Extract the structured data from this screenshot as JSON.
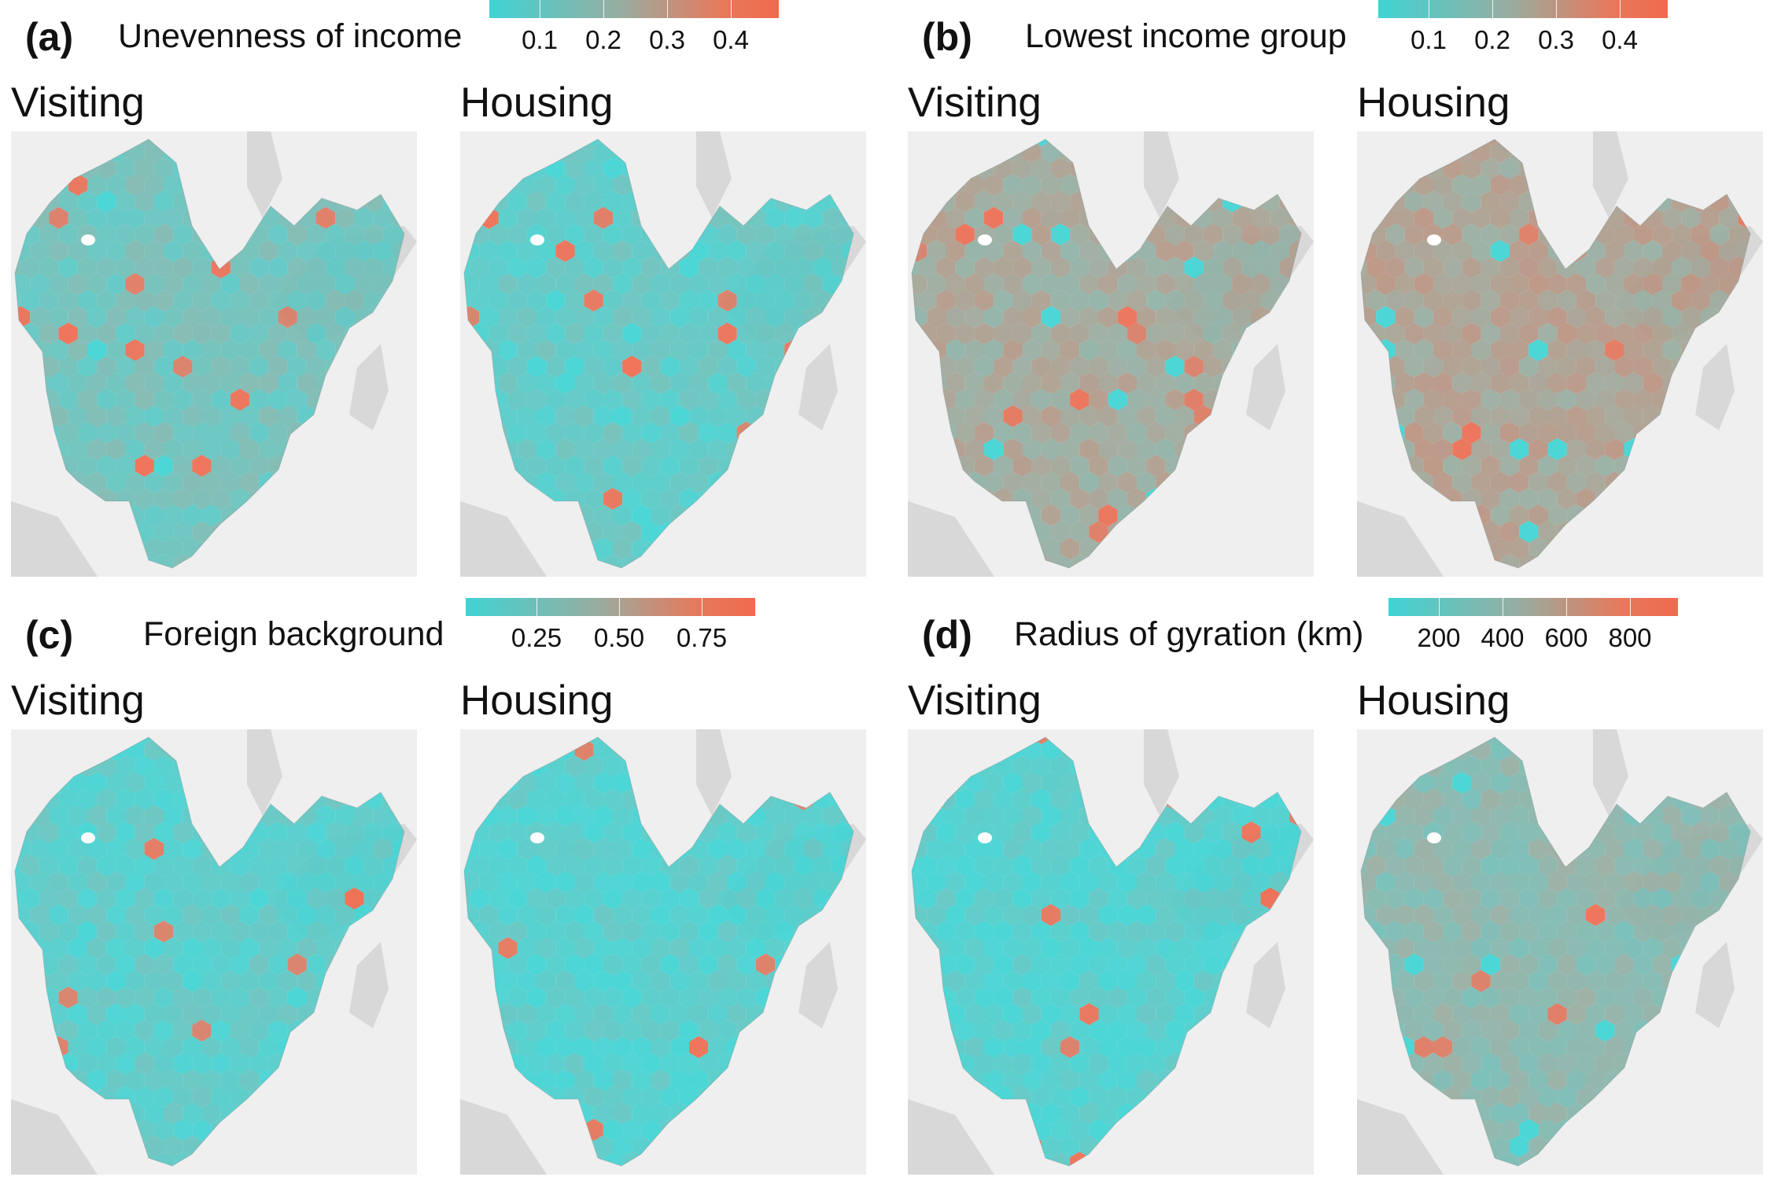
{
  "colors": {
    "low": "#3fd4d4",
    "mid": "#97ada1",
    "high": "#f06a4e",
    "basemap": "#efefef",
    "water_land": "#d8d8d8"
  },
  "panels": [
    {
      "letter": "(a)",
      "title": "Unevenness of income",
      "legend": {
        "ticks": [
          "0.1",
          "0.2",
          "0.3",
          "0.4"
        ]
      },
      "maps": [
        {
          "label": "Visiting",
          "value_level": 0.25
        },
        {
          "label": "Housing",
          "value_level": 0.15
        }
      ]
    },
    {
      "letter": "(b)",
      "title": "Lowest income group",
      "legend": {
        "ticks": [
          "0.1",
          "0.2",
          "0.3",
          "0.4"
        ]
      },
      "maps": [
        {
          "label": "Visiting",
          "value_level": 0.55
        },
        {
          "label": "Housing",
          "value_level": 0.6
        }
      ]
    },
    {
      "letter": "(c)",
      "title": "Foreign background",
      "legend": {
        "ticks": [
          "0.25",
          "0.50",
          "0.75"
        ]
      },
      "maps": [
        {
          "label": "Visiting",
          "value_level": 0.12
        },
        {
          "label": "Housing",
          "value_level": 0.08
        }
      ]
    },
    {
      "letter": "(d)",
      "title": "Radius of gyration (km)",
      "legend": {
        "ticks": [
          "200",
          "400",
          "600",
          "800"
        ]
      },
      "maps": [
        {
          "label": "Visiting",
          "value_level": 0.07
        },
        {
          "label": "Housing",
          "value_level": 0.4
        }
      ]
    }
  ]
}
